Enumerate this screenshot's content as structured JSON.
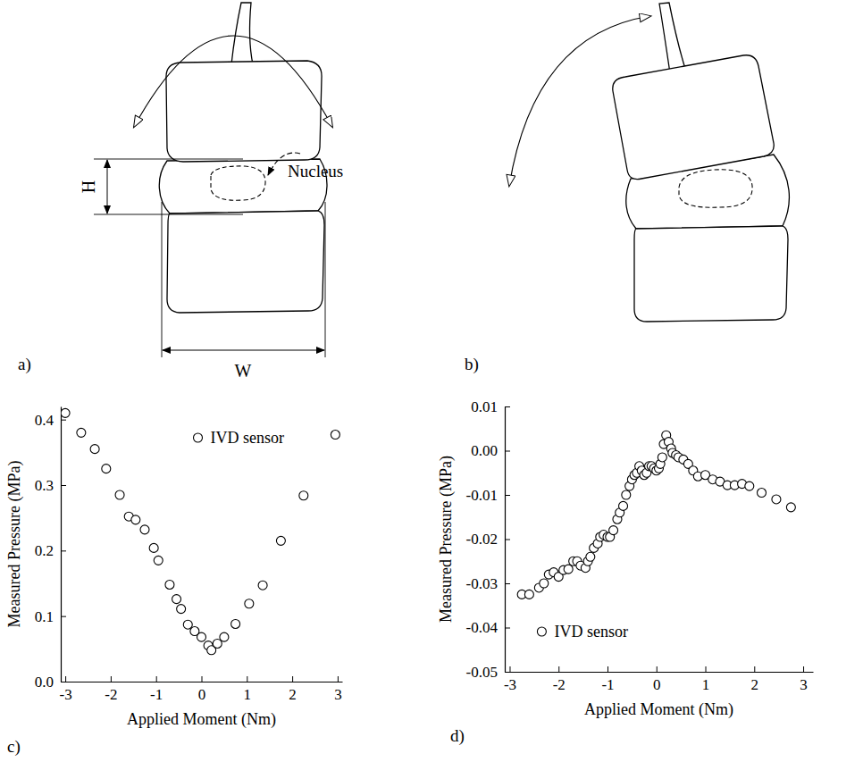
{
  "panel_labels": [
    "a)",
    "b)",
    "c)",
    "d)"
  ],
  "diagram": {
    "height_label": "H",
    "width_label": "W",
    "nucleus_label": "Nucleus"
  },
  "chart_data": [
    {
      "type": "scatter",
      "x_label": "Applied Moment (Nm)",
      "y_label": "Measured Pressure (MPa)",
      "xlim": [
        -3.1,
        3.1
      ],
      "xticks": [
        -3,
        -2,
        -1,
        0,
        1,
        2,
        3
      ],
      "ylim": [
        0,
        0.42
      ],
      "yticks": [
        {
          "value": 0,
          "label": "0.0"
        },
        0.1,
        0.2,
        0.3,
        0.4
      ],
      "grid": false,
      "legend": "upper center",
      "x": [
        -3.0,
        -2.65,
        -2.35,
        -2.1,
        -1.8,
        -1.6,
        -1.45,
        -1.25,
        -1.05,
        -0.95,
        -0.7,
        -0.55,
        -0.45,
        -0.3,
        -0.15,
        0.0,
        0.15,
        0.22,
        0.35,
        0.5,
        0.75,
        1.05,
        1.35,
        1.75,
        2.25,
        2.95
      ],
      "series": [
        {
          "name": "IVD sensor",
          "color": "#000000",
          "marker": "open_circle",
          "values": [
            0.41,
            0.38,
            0.355,
            0.325,
            0.285,
            0.252,
            0.247,
            0.232,
            0.204,
            0.185,
            0.148,
            0.126,
            0.111,
            0.087,
            0.077,
            0.068,
            0.055,
            0.048,
            0.058,
            0.068,
            0.088,
            0.119,
            0.147,
            0.215,
            0.284,
            0.377
          ]
        }
      ]
    },
    {
      "type": "scatter",
      "x_label": "Applied Moment (Nm)",
      "y_label": "Measured Pressure (MPa)",
      "xlim": [
        -3.1,
        3.2
      ],
      "xticks": [
        -3,
        -2,
        -1,
        0,
        1,
        2,
        3
      ],
      "ylim": [
        -0.05,
        0.01
      ],
      "yticks": [
        -0.05,
        -0.04,
        -0.03,
        -0.02,
        -0.01,
        {
          "value": 0,
          "label": "0.00"
        },
        0.01
      ],
      "grid": false,
      "legend": "lower left",
      "x": [
        -2.75,
        -2.6,
        -2.4,
        -2.3,
        -2.2,
        -2.1,
        -2.0,
        -1.9,
        -1.8,
        -1.7,
        -1.62,
        -1.55,
        -1.45,
        -1.4,
        -1.35,
        -1.28,
        -1.2,
        -1.15,
        -1.08,
        -1.0,
        -0.95,
        -0.88,
        -0.8,
        -0.75,
        -0.68,
        -0.62,
        -0.55,
        -0.5,
        -0.45,
        -0.4,
        -0.35,
        -0.3,
        -0.25,
        -0.2,
        -0.15,
        -0.1,
        -0.05,
        0.0,
        0.05,
        0.08,
        0.12,
        0.15,
        0.2,
        0.25,
        0.3,
        0.33,
        0.4,
        0.45,
        0.55,
        0.65,
        0.75,
        0.85,
        1.0,
        1.15,
        1.3,
        1.45,
        1.6,
        1.75,
        1.9,
        2.15,
        2.45,
        2.75
      ],
      "series": [
        {
          "name": "IVD sensor",
          "color": "#000000",
          "marker": "open_circle",
          "values": [
            -0.0325,
            -0.0325,
            -0.031,
            -0.03,
            -0.028,
            -0.0275,
            -0.0285,
            -0.027,
            -0.0268,
            -0.025,
            -0.025,
            -0.026,
            -0.0265,
            -0.025,
            -0.024,
            -0.022,
            -0.021,
            -0.0195,
            -0.019,
            -0.0195,
            -0.0195,
            -0.018,
            -0.0155,
            -0.014,
            -0.0125,
            -0.01,
            -0.008,
            -0.0065,
            -0.0055,
            -0.005,
            -0.0035,
            -0.0045,
            -0.0055,
            -0.005,
            -0.0035,
            -0.0035,
            -0.004,
            -0.0045,
            -0.004,
            -0.003,
            -0.0015,
            0.0015,
            0.0035,
            0.002,
            0.0005,
            -0.0005,
            -0.001,
            -0.0015,
            -0.002,
            -0.003,
            -0.0045,
            -0.0058,
            -0.0055,
            -0.0065,
            -0.007,
            -0.0078,
            -0.0078,
            -0.0075,
            -0.008,
            -0.0095,
            -0.011,
            -0.0128
          ]
        }
      ]
    }
  ]
}
